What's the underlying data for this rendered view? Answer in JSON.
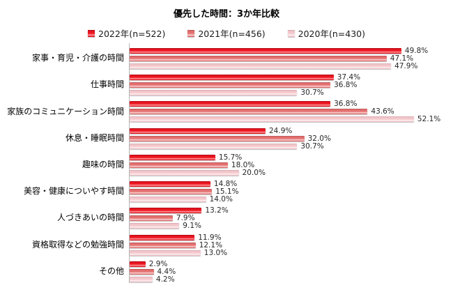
{
  "chart_data": {
    "type": "bar",
    "orientation": "horizontal",
    "title": "優先した時間：3か年比較",
    "xlabel": "",
    "ylabel": "",
    "value_suffix": "%",
    "xlim": [
      0,
      55
    ],
    "grid": false,
    "legend_position": "top",
    "categories": [
      "家事・育児・介護の時間",
      "仕事時間",
      "家族のコミュニケーション時間",
      "休息・睡眠時間",
      "趣味の時間",
      "美容・健康についやす時間",
      "人づきあいの時間",
      "資格取得などの勉強時間",
      "その他"
    ],
    "series": [
      {
        "name": "2022年(n=522)",
        "color": "#ed1c24",
        "values": [
          49.8,
          37.4,
          36.8,
          24.9,
          15.7,
          14.8,
          13.2,
          11.9,
          2.9
        ]
      },
      {
        "name": "2021年(n=456)",
        "color": "#e57676",
        "values": [
          47.1,
          36.8,
          43.6,
          32.0,
          18.0,
          15.1,
          7.9,
          12.1,
          4.4
        ]
      },
      {
        "name": "2020年(n=430)",
        "color": "#f4cbcf",
        "values": [
          47.9,
          30.7,
          52.1,
          30.7,
          20.0,
          14.0,
          9.1,
          13.0,
          4.2
        ]
      }
    ]
  }
}
